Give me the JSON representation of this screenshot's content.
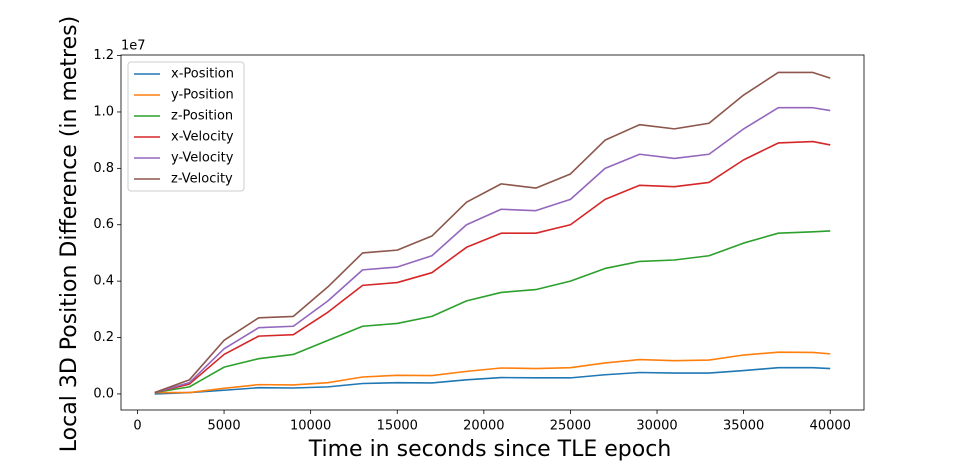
{
  "chart_data": {
    "type": "line",
    "xlabel": "Time in seconds since TLE epoch",
    "ylabel": "Local 3D Position Difference (in metres)",
    "y_offset_label": "1e7",
    "x": [
      1000,
      3000,
      5000,
      7000,
      9000,
      11000,
      13000,
      15000,
      17000,
      19000,
      21000,
      23000,
      25000,
      27000,
      29000,
      31000,
      33000,
      35000,
      37000,
      39000,
      40000
    ],
    "series": [
      {
        "name": "x-Position",
        "color": "#1f77b4",
        "values": [
          0.0,
          0.005,
          0.013,
          0.022,
          0.021,
          0.025,
          0.037,
          0.04,
          0.039,
          0.05,
          0.058,
          0.057,
          0.057,
          0.068,
          0.076,
          0.074,
          0.074,
          0.083,
          0.093,
          0.093,
          0.09
        ]
      },
      {
        "name": "y-Position",
        "color": "#ff7f0e",
        "values": [
          0.005,
          0.005,
          0.02,
          0.033,
          0.032,
          0.04,
          0.06,
          0.066,
          0.065,
          0.08,
          0.092,
          0.09,
          0.093,
          0.11,
          0.122,
          0.118,
          0.12,
          0.138,
          0.148,
          0.147,
          0.142
        ]
      },
      {
        "name": "z-Position",
        "color": "#2ca02c",
        "values": [
          0.005,
          0.025,
          0.095,
          0.125,
          0.14,
          0.19,
          0.24,
          0.25,
          0.275,
          0.33,
          0.36,
          0.37,
          0.4,
          0.445,
          0.47,
          0.475,
          0.49,
          0.535,
          0.57,
          0.575,
          0.578
        ]
      },
      {
        "name": "x-Velocity",
        "color": "#d62728",
        "values": [
          0.005,
          0.035,
          0.14,
          0.205,
          0.21,
          0.29,
          0.385,
          0.395,
          0.43,
          0.52,
          0.57,
          0.57,
          0.6,
          0.69,
          0.74,
          0.735,
          0.75,
          0.83,
          0.89,
          0.895,
          0.883
        ]
      },
      {
        "name": "y-Velocity",
        "color": "#9467bd",
        "values": [
          0.005,
          0.04,
          0.16,
          0.235,
          0.24,
          0.33,
          0.44,
          0.45,
          0.49,
          0.6,
          0.655,
          0.65,
          0.69,
          0.8,
          0.85,
          0.835,
          0.85,
          0.94,
          1.015,
          1.015,
          1.005
        ]
      },
      {
        "name": "z-Velocity",
        "color": "#8c564b",
        "values": [
          0.005,
          0.05,
          0.19,
          0.27,
          0.275,
          0.38,
          0.5,
          0.51,
          0.56,
          0.68,
          0.745,
          0.73,
          0.78,
          0.9,
          0.955,
          0.94,
          0.96,
          1.06,
          1.14,
          1.14,
          1.12
        ]
      }
    ],
    "xlim": [
      -950,
      41950
    ],
    "ylim": [
      -0.057,
      1.202
    ],
    "xticks": [
      0,
      5000,
      10000,
      15000,
      20000,
      25000,
      30000,
      35000,
      40000
    ],
    "yticks": [
      {
        "value": 0,
        "label": "0.0"
      },
      {
        "value": 0.2,
        "label": "0.2"
      },
      {
        "value": 0.4,
        "label": "0.4"
      },
      {
        "value": 0.6,
        "label": "0.6"
      },
      {
        "value": 0.8,
        "label": "0.8"
      },
      {
        "value": 1.0,
        "label": "1.0"
      },
      {
        "value": 1.2,
        "label": "1.2"
      }
    ],
    "grid": false,
    "legend": "upper-left"
  }
}
